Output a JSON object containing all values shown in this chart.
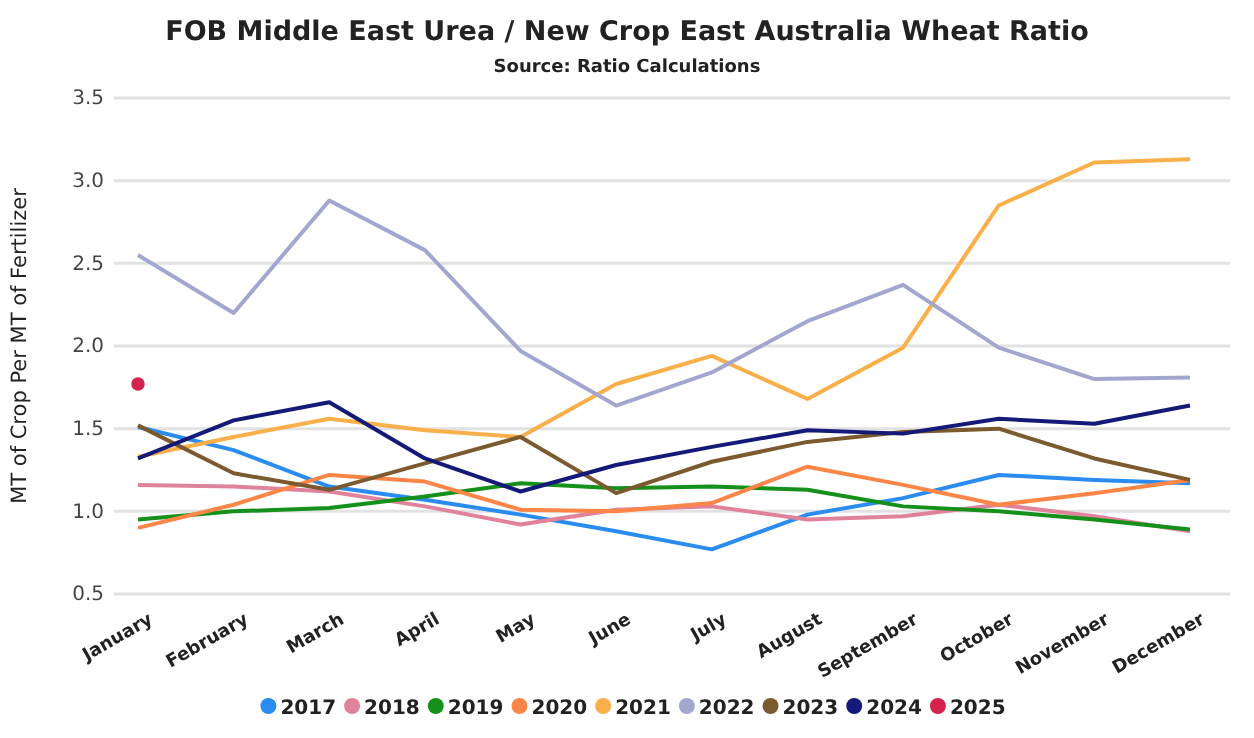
{
  "chart_data": {
    "type": "line",
    "title": "FOB Middle East Urea / New Crop East Australia Wheat Ratio",
    "subtitle": "Source: Ratio Calculations",
    "ylabel": "MT of Crop Per MT of Fertilizer",
    "categories": [
      "January",
      "February",
      "March",
      "April",
      "May",
      "June",
      "July",
      "August",
      "September",
      "October",
      "November",
      "December"
    ],
    "ylim": [
      0.5,
      3.5
    ],
    "yticks": [
      0.5,
      {
        "value": 1,
        "label": "1.0"
      },
      1.5,
      {
        "value": 2,
        "label": "2.0"
      },
      2.5,
      {
        "value": 3,
        "label": "3.0"
      },
      3.5
    ],
    "grid": "y",
    "legend": "bottom",
    "marker": "none",
    "series": [
      {
        "name": "2017",
        "color": "#2b8cf0",
        "values": [
          1.51,
          1.37,
          1.15,
          1.07,
          0.98,
          0.88,
          0.77,
          0.98,
          1.08,
          1.22,
          1.19,
          1.17
        ]
      },
      {
        "name": "2018",
        "color": "#e0839a",
        "values": [
          1.16,
          1.15,
          1.12,
          1.03,
          0.92,
          1.01,
          1.03,
          0.95,
          0.97,
          1.04,
          0.97,
          0.88
        ]
      },
      {
        "name": "2019",
        "color": "#15901a",
        "values": [
          0.95,
          1.0,
          1.02,
          1.09,
          1.17,
          1.14,
          1.15,
          1.13,
          1.03,
          1.0,
          0.95,
          0.89
        ]
      },
      {
        "name": "2020",
        "color": "#fb8648",
        "values": [
          0.9,
          1.04,
          1.22,
          1.18,
          1.01,
          1.0,
          1.05,
          1.27,
          1.16,
          1.04,
          1.11,
          1.19
        ]
      },
      {
        "name": "2021",
        "color": "#f9b04b",
        "values": [
          1.33,
          1.45,
          1.56,
          1.49,
          1.45,
          1.77,
          1.94,
          1.68,
          1.99,
          2.85,
          3.11,
          3.13
        ]
      },
      {
        "name": "2022",
        "color": "#a3a7cf",
        "values": [
          2.55,
          2.2,
          2.88,
          2.58,
          1.97,
          1.64,
          1.84,
          2.15,
          2.37,
          1.99,
          1.8,
          1.81
        ]
      },
      {
        "name": "2023",
        "color": "#7a5a2e",
        "values": [
          1.52,
          1.23,
          1.13,
          1.29,
          1.45,
          1.11,
          1.3,
          1.42,
          1.48,
          1.5,
          1.32,
          1.19
        ]
      },
      {
        "name": "2024",
        "color": "#151a78",
        "values": [
          1.32,
          1.55,
          1.66,
          1.32,
          1.12,
          1.28,
          1.39,
          1.49,
          1.47,
          1.56,
          1.53,
          1.64
        ]
      },
      {
        "name": "2025",
        "color": "#d5234f",
        "type": "scatter",
        "marker": "circle",
        "values": [
          1.77,
          null,
          null,
          null,
          null,
          null,
          null,
          null,
          null,
          null,
          null,
          null
        ]
      }
    ]
  }
}
